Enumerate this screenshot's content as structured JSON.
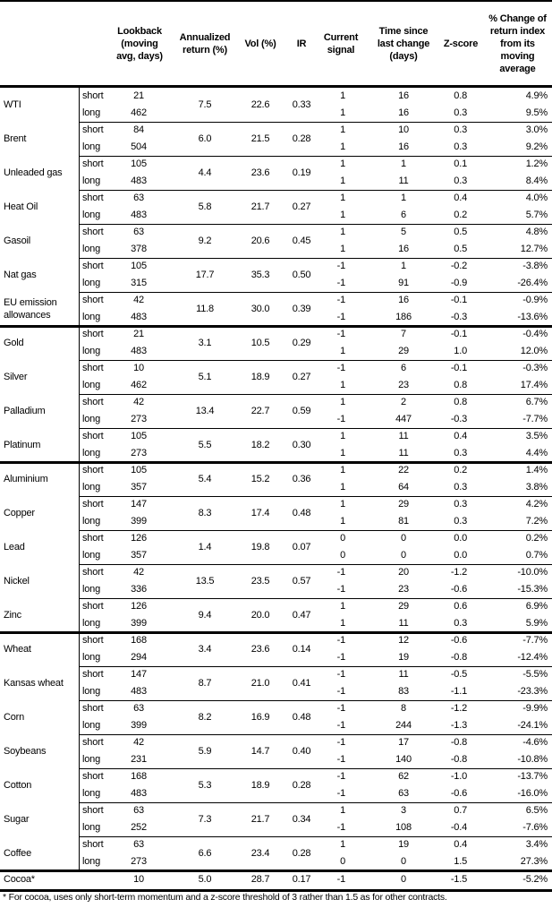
{
  "headers": {
    "lookback": "Lookback\n(moving\navg, days)",
    "ann_return": "Annualized\nreturn (%)",
    "vol": "Vol (%)",
    "ir": "IR",
    "signal": "Current\nsignal",
    "time": "Time since\nlast change\n(days)",
    "zscore": "Z-score",
    "pct": "% Change of\nreturn index\nfrom its\nmoving\naverage"
  },
  "labels": {
    "short": "short",
    "long": "long"
  },
  "sections": [
    [
      {
        "name": "WTI",
        "lookback": [
          "21",
          "462"
        ],
        "ann": "7.5",
        "vol": "22.6",
        "ir": "0.33",
        "signal": [
          "1",
          "1"
        ],
        "time": [
          "16",
          "16"
        ],
        "z": [
          "0.8",
          "0.3"
        ],
        "pct": [
          "4.9%",
          "9.5%"
        ]
      },
      {
        "name": "Brent",
        "lookback": [
          "84",
          "504"
        ],
        "ann": "6.0",
        "vol": "21.5",
        "ir": "0.28",
        "signal": [
          "1",
          "1"
        ],
        "time": [
          "10",
          "16"
        ],
        "z": [
          "0.3",
          "0.3"
        ],
        "pct": [
          "3.0%",
          "9.2%"
        ]
      },
      {
        "name": "Unleaded gas",
        "lookback": [
          "105",
          "483"
        ],
        "ann": "4.4",
        "vol": "23.6",
        "ir": "0.19",
        "signal": [
          "1",
          "1"
        ],
        "time": [
          "1",
          "11"
        ],
        "z": [
          "0.1",
          "0.3"
        ],
        "pct": [
          "1.2%",
          "8.4%"
        ]
      },
      {
        "name": "Heat Oil",
        "lookback": [
          "63",
          "483"
        ],
        "ann": "5.8",
        "vol": "21.7",
        "ir": "0.27",
        "signal": [
          "1",
          "1"
        ],
        "time": [
          "1",
          "6"
        ],
        "z": [
          "0.4",
          "0.2"
        ],
        "pct": [
          "4.0%",
          "5.7%"
        ]
      },
      {
        "name": "Gasoil",
        "lookback": [
          "63",
          "378"
        ],
        "ann": "9.2",
        "vol": "20.6",
        "ir": "0.45",
        "signal": [
          "1",
          "1"
        ],
        "time": [
          "5",
          "16"
        ],
        "z": [
          "0.5",
          "0.5"
        ],
        "pct": [
          "4.8%",
          "12.7%"
        ]
      },
      {
        "name": "Nat gas",
        "lookback": [
          "105",
          "315"
        ],
        "ann": "17.7",
        "vol": "35.3",
        "ir": "0.50",
        "signal": [
          "-1",
          "-1"
        ],
        "time": [
          "1",
          "91"
        ],
        "z": [
          "-0.2",
          "-0.9"
        ],
        "pct": [
          "-3.8%",
          "-26.4%"
        ]
      },
      {
        "name": "EU emission allowances",
        "lookback": [
          "42",
          "483"
        ],
        "ann": "11.8",
        "vol": "30.0",
        "ir": "0.39",
        "signal": [
          "-1",
          "-1"
        ],
        "time": [
          "16",
          "186"
        ],
        "z": [
          "-0.1",
          "-0.3"
        ],
        "pct": [
          "-0.9%",
          "-13.6%"
        ]
      }
    ],
    [
      {
        "name": "Gold",
        "lookback": [
          "21",
          "483"
        ],
        "ann": "3.1",
        "vol": "10.5",
        "ir": "0.29",
        "signal": [
          "-1",
          "1"
        ],
        "time": [
          "7",
          "29"
        ],
        "z": [
          "-0.1",
          "1.0"
        ],
        "pct": [
          "-0.4%",
          "12.0%"
        ]
      },
      {
        "name": "Silver",
        "lookback": [
          "10",
          "462"
        ],
        "ann": "5.1",
        "vol": "18.9",
        "ir": "0.27",
        "signal": [
          "-1",
          "1"
        ],
        "time": [
          "6",
          "23"
        ],
        "z": [
          "-0.1",
          "0.8"
        ],
        "pct": [
          "-0.3%",
          "17.4%"
        ]
      },
      {
        "name": "Palladium",
        "lookback": [
          "42",
          "273"
        ],
        "ann": "13.4",
        "vol": "22.7",
        "ir": "0.59",
        "signal": [
          "1",
          "-1"
        ],
        "time": [
          "2",
          "447"
        ],
        "z": [
          "0.8",
          "-0.3"
        ],
        "pct": [
          "6.7%",
          "-7.7%"
        ]
      },
      {
        "name": "Platinum",
        "lookback": [
          "105",
          "273"
        ],
        "ann": "5.5",
        "vol": "18.2",
        "ir": "0.30",
        "signal": [
          "1",
          "1"
        ],
        "time": [
          "11",
          "11"
        ],
        "z": [
          "0.4",
          "0.3"
        ],
        "pct": [
          "3.5%",
          "4.4%"
        ]
      }
    ],
    [
      {
        "name": "Aluminium",
        "lookback": [
          "105",
          "357"
        ],
        "ann": "5.4",
        "vol": "15.2",
        "ir": "0.36",
        "signal": [
          "1",
          "1"
        ],
        "time": [
          "22",
          "64"
        ],
        "z": [
          "0.2",
          "0.3"
        ],
        "pct": [
          "1.4%",
          "3.8%"
        ]
      },
      {
        "name": "Copper",
        "lookback": [
          "147",
          "399"
        ],
        "ann": "8.3",
        "vol": "17.4",
        "ir": "0.48",
        "signal": [
          "1",
          "1"
        ],
        "time": [
          "29",
          "81"
        ],
        "z": [
          "0.3",
          "0.3"
        ],
        "pct": [
          "4.2%",
          "7.2%"
        ]
      },
      {
        "name": "Lead",
        "lookback": [
          "126",
          "357"
        ],
        "ann": "1.4",
        "vol": "19.8",
        "ir": "0.07",
        "signal": [
          "0",
          "0"
        ],
        "time": [
          "0",
          "0"
        ],
        "z": [
          "0.0",
          "0.0"
        ],
        "pct": [
          "0.2%",
          "0.7%"
        ]
      },
      {
        "name": "Nickel",
        "lookback": [
          "42",
          "336"
        ],
        "ann": "13.5",
        "vol": "23.5",
        "ir": "0.57",
        "signal": [
          "-1",
          "-1"
        ],
        "time": [
          "20",
          "23"
        ],
        "z": [
          "-1.2",
          "-0.6"
        ],
        "pct": [
          "-10.0%",
          "-15.3%"
        ]
      },
      {
        "name": "Zinc",
        "lookback": [
          "126",
          "399"
        ],
        "ann": "9.4",
        "vol": "20.0",
        "ir": "0.47",
        "signal": [
          "1",
          "1"
        ],
        "time": [
          "29",
          "11"
        ],
        "z": [
          "0.6",
          "0.3"
        ],
        "pct": [
          "6.9%",
          "5.9%"
        ]
      }
    ],
    [
      {
        "name": "Wheat",
        "lookback": [
          "168",
          "294"
        ],
        "ann": "3.4",
        "vol": "23.6",
        "ir": "0.14",
        "signal": [
          "-1",
          "-1"
        ],
        "time": [
          "12",
          "19"
        ],
        "z": [
          "-0.6",
          "-0.8"
        ],
        "pct": [
          "-7.7%",
          "-12.4%"
        ]
      },
      {
        "name": "Kansas wheat",
        "lookback": [
          "147",
          "483"
        ],
        "ann": "8.7",
        "vol": "21.0",
        "ir": "0.41",
        "signal": [
          "-1",
          "-1"
        ],
        "time": [
          "11",
          "83"
        ],
        "z": [
          "-0.5",
          "-1.1"
        ],
        "pct": [
          "-5.5%",
          "-23.3%"
        ]
      },
      {
        "name": "Corn",
        "lookback": [
          "63",
          "399"
        ],
        "ann": "8.2",
        "vol": "16.9",
        "ir": "0.48",
        "signal": [
          "-1",
          "-1"
        ],
        "time": [
          "8",
          "244"
        ],
        "z": [
          "-1.2",
          "-1.3"
        ],
        "pct": [
          "-9.9%",
          "-24.1%"
        ]
      },
      {
        "name": "Soybeans",
        "lookback": [
          "42",
          "231"
        ],
        "ann": "5.9",
        "vol": "14.7",
        "ir": "0.40",
        "signal": [
          "-1",
          "-1"
        ],
        "time": [
          "17",
          "140"
        ],
        "z": [
          "-0.8",
          "-0.8"
        ],
        "pct": [
          "-4.6%",
          "-10.8%"
        ]
      },
      {
        "name": "Cotton",
        "lookback": [
          "168",
          "483"
        ],
        "ann": "5.3",
        "vol": "18.9",
        "ir": "0.28",
        "signal": [
          "-1",
          "-1"
        ],
        "time": [
          "62",
          "63"
        ],
        "z": [
          "-1.0",
          "-0.6"
        ],
        "pct": [
          "-13.7%",
          "-16.0%"
        ]
      },
      {
        "name": "Sugar",
        "lookback": [
          "63",
          "252"
        ],
        "ann": "7.3",
        "vol": "21.7",
        "ir": "0.34",
        "signal": [
          "1",
          "-1"
        ],
        "time": [
          "3",
          "108"
        ],
        "z": [
          "0.7",
          "-0.4"
        ],
        "pct": [
          "6.5%",
          "-7.6%"
        ]
      },
      {
        "name": "Coffee",
        "lookback": [
          "63",
          "273"
        ],
        "ann": "6.6",
        "vol": "23.4",
        "ir": "0.28",
        "signal": [
          "1",
          "0"
        ],
        "time": [
          "19",
          "0"
        ],
        "z": [
          "0.4",
          "1.5"
        ],
        "pct": [
          "3.4%",
          "27.3%"
        ]
      }
    ]
  ],
  "cocoa": {
    "name": "Cocoa*",
    "lookback": "10",
    "ann": "5.0",
    "vol": "28.7",
    "ir": "0.17",
    "signal": "-1",
    "time": "0",
    "z": "-1.5",
    "pct": "-5.2%"
  },
  "footnote": "* For cocoa, uses only short-term momentum and a z-score threshold of 3 rather than 1.5 as for other contracts."
}
